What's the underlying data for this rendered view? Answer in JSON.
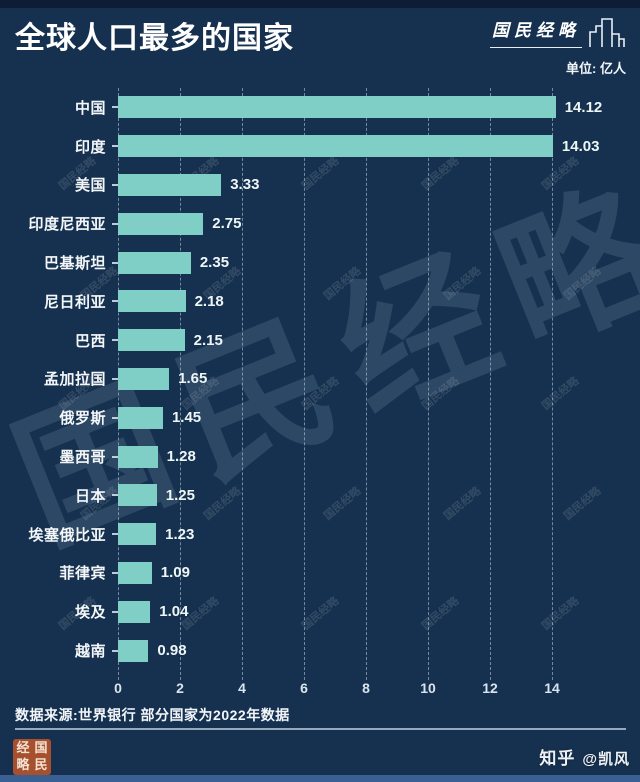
{
  "header": {
    "title": "全球人口最多的国家",
    "brand": "国民经略",
    "unit_label": "单位: 亿人"
  },
  "chart_data": {
    "type": "bar",
    "orientation": "horizontal",
    "title": "全球人口最多的国家",
    "unit": "亿人",
    "categories": [
      "中国",
      "印度",
      "美国",
      "印度尼西亚",
      "巴基斯坦",
      "尼日利亚",
      "巴西",
      "孟加拉国",
      "俄罗斯",
      "墨西哥",
      "日本",
      "埃塞俄比亚",
      "菲律宾",
      "埃及",
      "越南"
    ],
    "values": [
      14.12,
      14.03,
      3.33,
      2.75,
      2.35,
      2.18,
      2.15,
      1.65,
      1.45,
      1.28,
      1.25,
      1.23,
      1.09,
      1.04,
      0.98
    ],
    "value_labels": [
      "14.12",
      "14.03",
      "3.33",
      "2.75",
      "2.35",
      "2.18",
      "2.15",
      "1.65",
      "1.45",
      "1.28",
      "1.25",
      "1.23",
      "1.09",
      "1.04",
      "0.98"
    ],
    "x_ticks": [
      0,
      2,
      4,
      6,
      8,
      10,
      12,
      14
    ],
    "xlim": [
      0,
      16.8
    ],
    "grid": true,
    "legend": false,
    "bar_color": "#7fcfc7",
    "background_color": "#16314f"
  },
  "footer": {
    "source": "数据来源:世界银行 部分国家为2022年数据",
    "seal_chars": [
      "经",
      "国",
      "略",
      "民"
    ],
    "zhihu_label": "知乎",
    "author_handle": "@凯风"
  },
  "watermark": {
    "text": "国民经略"
  }
}
